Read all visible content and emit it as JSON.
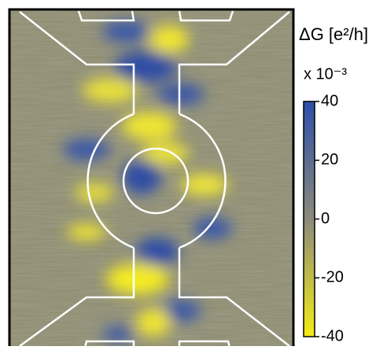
{
  "chart_data": {
    "type": "heatmap",
    "colorbar_label": "ΔG [e²/h]",
    "colorbar_multiplier": "x 10⁻³",
    "colorbar_lim": [
      -40,
      40
    ],
    "colorbar_ticks": [
      40,
      20,
      0,
      -20,
      -40
    ],
    "colormap": [
      "#f4ec16",
      "#8c8a7c",
      "#2c4fa8"
    ]
  }
}
